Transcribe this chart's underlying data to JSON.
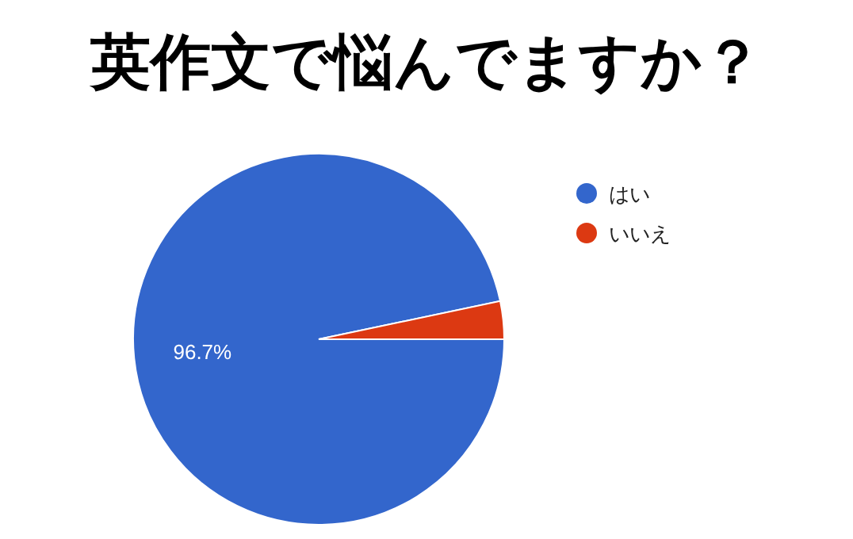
{
  "chart_data": {
    "type": "pie",
    "title": "英作文で悩んでますか？",
    "categories": [
      "はい",
      "いいえ"
    ],
    "values": [
      96.7,
      3.3
    ],
    "colors": [
      "#3366cc",
      "#dc3912"
    ],
    "value_labels": [
      "96.7%",
      null
    ],
    "legend": "top right"
  }
}
